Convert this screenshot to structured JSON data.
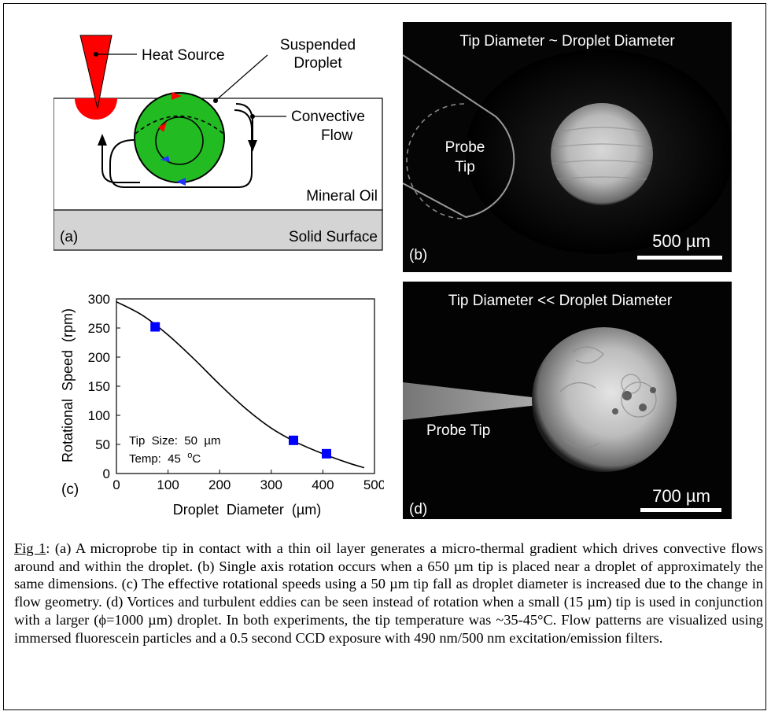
{
  "panel_a": {
    "heat_source_label": "Heat Source",
    "suspended_droplet_label_line1": "Suspended",
    "suspended_droplet_label_line2": "Droplet",
    "convective_flow_label_line1": "Convective",
    "convective_flow_label_line2": "Flow",
    "mineral_oil_label": "Mineral Oil",
    "solid_surface_label": "Solid Surface",
    "panel_letter": "(a)",
    "colors": {
      "heat": "#ff0000",
      "droplet": "#22bb22",
      "arrow_red": "#ff0000",
      "arrow_blue": "#2233ff",
      "surface": "#d4d4d4"
    }
  },
  "panel_b": {
    "title": "Tip Diameter ~ Droplet Diameter",
    "probe_label_line1": "Probe",
    "probe_label_line2": "Tip",
    "scale_label": "500 µm",
    "panel_letter": "(b)"
  },
  "panel_c": {
    "panel_letter": "(c)",
    "inset_line1": "Tip  Size:  50  µm",
    "inset_line2_prefix": "Temp:  45  ",
    "inset_line2_sup": "o",
    "inset_line2_suffix": "C"
  },
  "panel_d": {
    "title": "Tip Diameter << Droplet Diameter",
    "probe_label": "Probe Tip",
    "scale_label": "700 µm",
    "panel_letter": "(d)"
  },
  "chart_data": {
    "type": "scatter",
    "xlabel": "Droplet  Diameter  (µm)",
    "ylabel": "Rotational  Speed  (rpm)",
    "xlim": [
      0,
      500
    ],
    "ylim": [
      0,
      300
    ],
    "x_ticks": [
      0,
      100,
      200,
      300,
      400,
      500
    ],
    "y_ticks": [
      0,
      50,
      100,
      150,
      200,
      250,
      300
    ],
    "series": [
      {
        "marker": "square",
        "color": "#0000ff",
        "x": [
          75,
          343,
          407
        ],
        "y": [
          252,
          57,
          34
        ]
      }
    ],
    "fit_curve": {
      "color": "#000000",
      "x": [
        0,
        50,
        100,
        150,
        200,
        250,
        300,
        350,
        400,
        450,
        480
      ],
      "y": [
        295,
        272,
        238,
        197,
        153,
        112,
        78,
        53,
        34,
        18,
        10
      ]
    },
    "grid": false
  },
  "caption": {
    "fig_label": "Fig 1",
    "text": ": (a) A microprobe tip in contact with a thin oil layer generates a micro-thermal gradient which drives convective flows around and within the droplet. (b) Single axis rotation occurs when a 650 µm tip is placed near a droplet of approximately the same dimensions. (c) The effective rotational speeds using a 50 µm tip fall as droplet diameter is increased due to the change in flow geometry. (d) Vortices and turbulent eddies can be seen instead of rotation when a small (15 µm) tip is used in conjunction with a larger (ϕ=1000 µm) droplet.  In both experiments, the tip temperature was ~35-45°C. Flow patterns are visualized using immersed fluorescein particles and a 0.5 second CCD exposure with 490 nm/500 nm excitation/emission filters."
  }
}
